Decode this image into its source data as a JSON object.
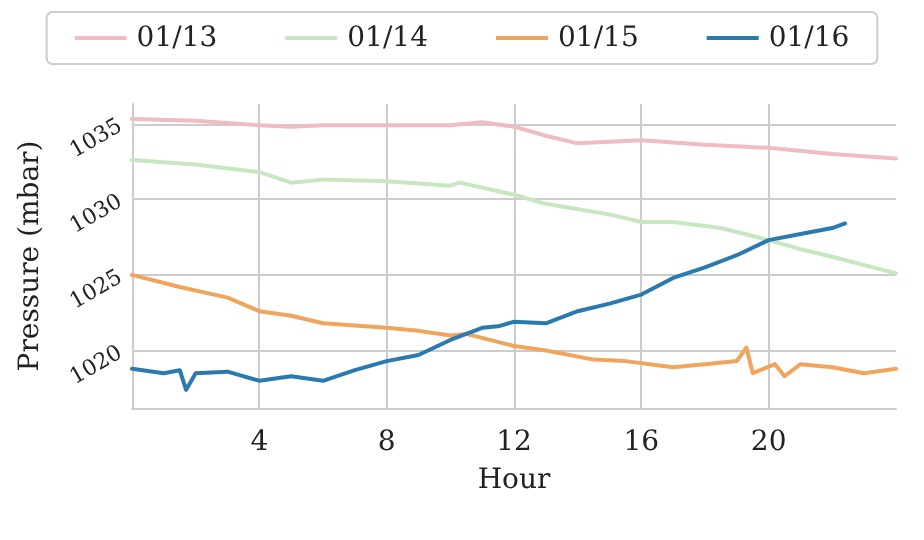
{
  "chart_data": {
    "type": "line",
    "xlabel": "Hour",
    "ylabel": "Pressure (mbar)",
    "xlim": [
      0,
      24
    ],
    "xticks": [
      4,
      8,
      12,
      16,
      20
    ],
    "ylim": [
      1016.2,
      1036.3
    ],
    "yticks": [
      1020,
      1025,
      1030,
      1035
    ],
    "grid": true,
    "legend": "top",
    "marker": "none",
    "line_style": "solid",
    "series": [
      {
        "name": "01/13",
        "color": "#eebcc2",
        "x": [
          0,
          2,
          4,
          5,
          6,
          8,
          10,
          11,
          12,
          13,
          14,
          16,
          18,
          20,
          22,
          24
        ],
        "values": [
          1035.3,
          1035.2,
          1034.9,
          1034.8,
          1034.9,
          1034.9,
          1034.9,
          1035.1,
          1034.8,
          1034.2,
          1033.7,
          1033.9,
          1033.6,
          1033.4,
          1033.0,
          1032.7
        ]
      },
      {
        "name": "01/14",
        "color": "#c7e6c1",
        "x": [
          0,
          2,
          4,
          5,
          6,
          8,
          10,
          10.3,
          12,
          13,
          15,
          16,
          17,
          18.5,
          20,
          21,
          22,
          24
        ],
        "values": [
          1032.6,
          1032.3,
          1031.8,
          1031.1,
          1031.3,
          1031.2,
          1030.9,
          1031.1,
          1030.3,
          1029.7,
          1029.0,
          1028.5,
          1028.5,
          1028.1,
          1027.3,
          1026.7,
          1026.2,
          1025.1
        ]
      },
      {
        "name": "01/15",
        "color": "#f0a45c",
        "x": [
          0,
          1.5,
          3,
          4,
          5,
          6,
          8,
          9,
          10,
          10.5,
          12,
          13,
          14.5,
          15.5,
          17,
          18,
          19,
          19.3,
          19.5,
          20.2,
          20.5,
          21,
          22,
          23,
          24
        ],
        "values": [
          1025.0,
          1024.2,
          1023.5,
          1022.6,
          1022.3,
          1021.8,
          1021.5,
          1021.3,
          1021.0,
          1021.1,
          1020.3,
          1020.0,
          1019.4,
          1019.3,
          1018.9,
          1019.1,
          1019.3,
          1020.2,
          1018.5,
          1019.1,
          1018.3,
          1019.1,
          1018.9,
          1018.5,
          1018.8
        ]
      },
      {
        "name": "01/16",
        "color": "#2a7ab0",
        "x": [
          0,
          1,
          1.5,
          1.7,
          2,
          3,
          4,
          5,
          6,
          7,
          8,
          9,
          10,
          11,
          11.5,
          12,
          13,
          14,
          15,
          16,
          17,
          18,
          19,
          20,
          21,
          22,
          22.4
        ],
        "values": [
          1018.8,
          1018.5,
          1018.7,
          1017.4,
          1018.5,
          1018.6,
          1018.0,
          1018.3,
          1018.0,
          1018.7,
          1019.3,
          1019.7,
          1020.7,
          1021.5,
          1021.6,
          1021.9,
          1021.8,
          1022.6,
          1023.1,
          1023.7,
          1024.8,
          1025.5,
          1026.3,
          1027.3,
          1027.7,
          1028.1,
          1028.4
        ]
      }
    ]
  }
}
